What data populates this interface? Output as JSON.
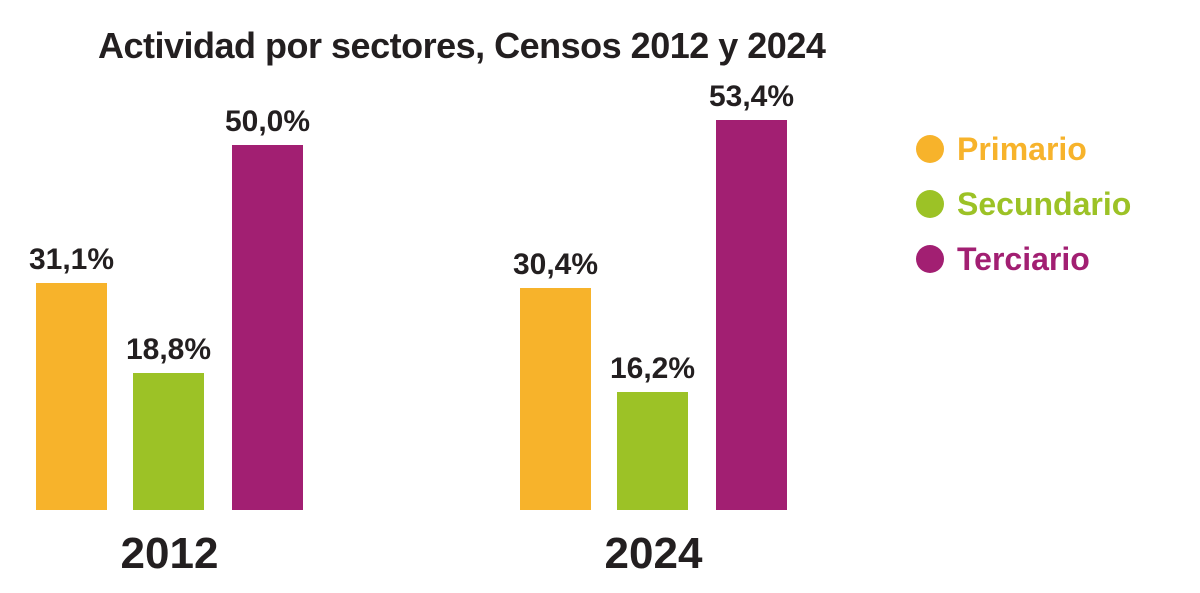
{
  "title": "Actividad por sectores, Censos 2012 y 2024",
  "chart_data": {
    "type": "bar",
    "title": "Actividad por sectores, Censos 2012 y 2024",
    "categories": [
      "2012",
      "2024"
    ],
    "series": [
      {
        "name": "Primario",
        "color": "#F7B32B",
        "values": [
          31.1,
          30.4
        ],
        "value_labels": [
          "31,1%",
          "30,4%"
        ]
      },
      {
        "name": "Secundario",
        "color": "#9CC226",
        "values": [
          18.8,
          16.2
        ],
        "value_labels": [
          "18,8%",
          "16,2%"
        ]
      },
      {
        "name": "Terciario",
        "color": "#A21F72",
        "values": [
          50.0,
          53.4
        ],
        "value_labels": [
          "50,0%",
          "53,4%"
        ]
      }
    ],
    "ylim": [
      0,
      56
    ],
    "grid": false,
    "axes_visible": false,
    "legend_position": "right",
    "value_suffix": "%",
    "decimal_separator": ","
  },
  "legend": {
    "items": [
      {
        "label": "Primario",
        "color": "#F7B32B"
      },
      {
        "label": "Secundario",
        "color": "#9CC226"
      },
      {
        "label": "Terciario",
        "color": "#A21F72"
      }
    ]
  },
  "colors": {
    "background": "#FFFFFF",
    "text": "#231F20"
  }
}
